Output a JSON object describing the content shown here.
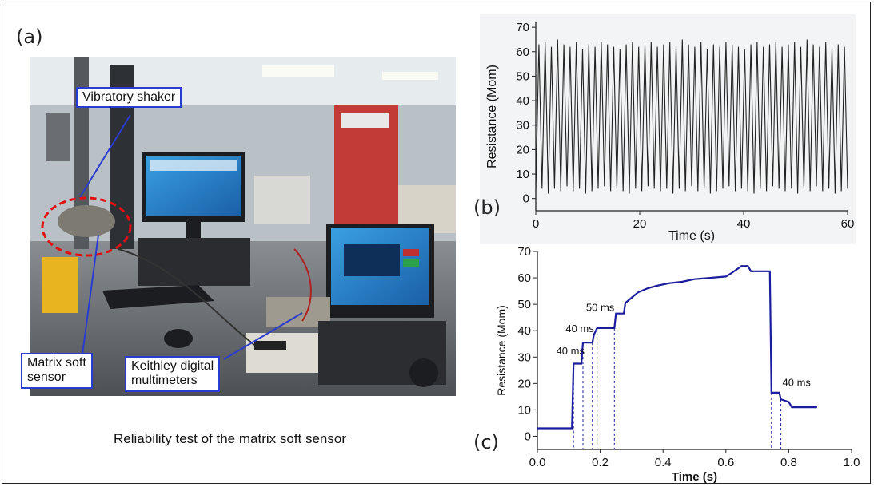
{
  "panels": {
    "a": "(a)",
    "b": "(b)",
    "c": "(c)"
  },
  "photo": {
    "callouts": {
      "shaker": "Vibratory shaker",
      "sensor_line1": "Matrix soft",
      "sensor_line2": "sensor",
      "multimeter_line1": "Keithley digital",
      "multimeter_line2": "multimeters"
    },
    "caption": "Reliability test of the matrix soft sensor"
  },
  "chart_data": [
    {
      "type": "line",
      "panel": "b",
      "xlabel": "Time (s)",
      "ylabel": "Resistance (Mom)",
      "xlim": [
        0,
        60
      ],
      "ylim": [
        -5,
        72
      ],
      "xticks": [
        0,
        20,
        40,
        60
      ],
      "yticks": [
        0,
        10,
        20,
        30,
        40,
        50,
        60,
        70
      ],
      "series": [
        {
          "color": "#222222",
          "cycle_period_s": 1.2,
          "min_values": [
            3,
            4,
            2,
            4,
            3,
            5,
            3,
            4,
            2,
            3,
            4,
            5,
            3,
            4,
            3,
            2,
            4,
            3,
            5,
            4
          ],
          "max_values": [
            63,
            64,
            62,
            65,
            63,
            62,
            64,
            61,
            63,
            62,
            64,
            63,
            62,
            61,
            63,
            64,
            62,
            63,
            64,
            62
          ]
        }
      ],
      "grid": false
    },
    {
      "type": "line",
      "panel": "c",
      "xlabel": "Time (s)",
      "ylabel": "Resistance (Mom)",
      "xlim": [
        0,
        1.0
      ],
      "ylim": [
        -5,
        70
      ],
      "xticks": [
        0.0,
        0.2,
        0.4,
        0.6,
        0.8,
        1.0
      ],
      "yticks": [
        0,
        10,
        20,
        30,
        40,
        50,
        60,
        70
      ],
      "series": [
        {
          "color": "#1c1c9e",
          "x": [
            0.0,
            0.11,
            0.115,
            0.14,
            0.145,
            0.175,
            0.18,
            0.19,
            0.195,
            0.245,
            0.25,
            0.275,
            0.28,
            0.3,
            0.32,
            0.35,
            0.38,
            0.42,
            0.46,
            0.5,
            0.55,
            0.6,
            0.62,
            0.65,
            0.67,
            0.68,
            0.72,
            0.74,
            0.745,
            0.77,
            0.775,
            0.8,
            0.81,
            0.89
          ],
          "y": [
            3,
            3,
            27.5,
            27.5,
            35.5,
            35.5,
            38.5,
            41,
            41,
            41,
            46.5,
            46.5,
            50.5,
            52.5,
            54.5,
            56,
            57,
            58,
            58.5,
            59.5,
            60,
            60.5,
            62,
            64.5,
            64.5,
            62.5,
            62.5,
            62.5,
            16.5,
            16.5,
            14,
            13,
            11,
            11
          ]
        }
      ],
      "dashed_x": [
        0.115,
        0.145,
        0.175,
        0.19,
        0.245,
        0.745,
        0.775
      ],
      "annotations": [
        {
          "text": "40 ms",
          "x": 0.06,
          "y": 31
        },
        {
          "text": "40 ms",
          "x": 0.09,
          "y": 39.5
        },
        {
          "text": "50 ms",
          "x": 0.155,
          "y": 47.5
        },
        {
          "text": "40 ms",
          "x": 0.78,
          "y": 19
        }
      ],
      "grid": false
    }
  ]
}
